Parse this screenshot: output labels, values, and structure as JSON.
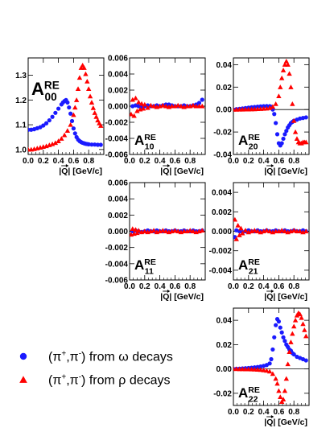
{
  "chart_data": {
    "type": "scatter",
    "colors": {
      "omega": "#1a1aff",
      "rho": "#ff0000"
    },
    "x_range": [
      0,
      1.0
    ],
    "x_ticks": [
      0.0,
      0.2,
      0.4,
      0.6,
      0.8
    ],
    "x_tick_labels": [
      "0.0",
      "0.2",
      "0.4",
      "0.6",
      "0.8"
    ],
    "xlabel_vec": "Q",
    "xlabel_unit": " [GeV/c]",
    "xlabel_bar": "|",
    "legend": [
      {
        "series": "omega",
        "marker": "circle",
        "label_main": "(π",
        "sup1": "+",
        "mid": ",π",
        "sup2": "-",
        "tail": ") from ω decays"
      },
      {
        "series": "rho",
        "marker": "triangle",
        "label_main": "(π",
        "sup1": "+",
        "mid": ",π",
        "sup2": "-",
        "tail": ") from ρ decays"
      }
    ],
    "panels": [
      {
        "id": "A00",
        "label_main": "A",
        "label_sup": "RE",
        "label_sub": "00",
        "ylim": [
          0.98,
          1.37
        ],
        "y_ticks": [
          1.0,
          1.1,
          1.2,
          1.3
        ],
        "y_tick_labels": [
          "1.0",
          "1.1",
          "1.2",
          "1.3"
        ],
        "zero_line": false,
        "series": [
          {
            "name": "omega",
            "x": [
              0.0,
              0.04,
              0.08,
              0.12,
              0.16,
              0.2,
              0.24,
              0.28,
              0.32,
              0.36,
              0.4,
              0.44,
              0.46,
              0.48,
              0.5,
              0.52,
              0.54,
              0.56,
              0.58,
              0.6,
              0.62,
              0.64,
              0.66,
              0.68,
              0.7,
              0.72,
              0.74,
              0.76,
              0.78,
              0.8,
              0.84,
              0.88,
              0.92,
              0.96
            ],
            "y": [
              1.08,
              1.08,
              1.082,
              1.086,
              1.09,
              1.097,
              1.106,
              1.118,
              1.132,
              1.148,
              1.165,
              1.182,
              1.19,
              1.196,
              1.2,
              1.19,
              1.17,
              1.145,
              1.115,
              1.085,
              1.065,
              1.05,
              1.04,
              1.034,
              1.03,
              1.027,
              1.025,
              1.023,
              1.022,
              1.021,
              1.02,
              1.02,
              1.019,
              1.019
            ]
          },
          {
            "name": "rho",
            "x": [
              0.0,
              0.04,
              0.08,
              0.12,
              0.16,
              0.2,
              0.24,
              0.28,
              0.32,
              0.36,
              0.4,
              0.44,
              0.48,
              0.52,
              0.56,
              0.6,
              0.62,
              0.64,
              0.66,
              0.68,
              0.7,
              0.72,
              0.74,
              0.76,
              0.78,
              0.8,
              0.82,
              0.84,
              0.86,
              0.88,
              0.9,
              0.92,
              0.94,
              0.96
            ],
            "y": [
              1.0,
              1.0,
              1.002,
              1.005,
              1.008,
              1.011,
              1.014,
              1.018,
              1.022,
              1.027,
              1.034,
              1.044,
              1.058,
              1.076,
              1.1,
              1.14,
              1.17,
              1.2,
              1.245,
              1.29,
              1.33,
              1.34,
              1.33,
              1.305,
              1.275,
              1.245,
              1.215,
              1.19,
              1.168,
              1.148,
              1.132,
              1.118,
              1.106,
              1.096
            ]
          }
        ]
      },
      {
        "id": "A10",
        "label_main": "A",
        "label_sup": "RE",
        "label_sub": "10",
        "ylim": [
          -0.006,
          0.006
        ],
        "y_ticks": [
          -0.006,
          -0.004,
          -0.002,
          0.0,
          0.002,
          0.004,
          0.006
        ],
        "y_tick_labels": [
          "-0.006",
          "-0.004",
          "-0.002",
          "0.000",
          "0.002",
          "0.004",
          "0.006"
        ],
        "zero_line": true,
        "series": [
          {
            "name": "omega",
            "x": [
              0.04,
              0.08,
              0.12,
              0.16,
              0.2,
              0.24,
              0.28,
              0.32,
              0.36,
              0.4,
              0.44,
              0.48,
              0.52,
              0.56,
              0.6,
              0.64,
              0.68,
              0.72,
              0.76,
              0.8,
              0.84,
              0.88,
              0.92,
              0.96
            ],
            "y": [
              0.0,
              0.0001,
              0.0,
              -0.0001,
              0.0,
              0.0001,
              0.0,
              0.0,
              0.0001,
              0.0,
              0.0001,
              0.0002,
              0.0002,
              0.0001,
              0.0,
              0.0,
              0.0,
              0.0001,
              0.0,
              0.0,
              0.0001,
              0.0002,
              0.0004,
              0.0008
            ]
          },
          {
            "name": "rho",
            "x": [
              0.02,
              0.04,
              0.06,
              0.08,
              0.1,
              0.12,
              0.14,
              0.16,
              0.18,
              0.2,
              0.24,
              0.28,
              0.32,
              0.36,
              0.4,
              0.44,
              0.48,
              0.52,
              0.56,
              0.6,
              0.64,
              0.68,
              0.72,
              0.76,
              0.8,
              0.84,
              0.88,
              0.92,
              0.96
            ],
            "y": [
              -0.001,
              0.0008,
              -0.0012,
              0.001,
              -0.0006,
              0.0005,
              -0.0004,
              0.0003,
              -0.0003,
              0.0002,
              -0.0002,
              0.0001,
              0.0,
              -0.0001,
              0.0,
              0.0001,
              0.0,
              -0.0001,
              0.0,
              0.0,
              0.0001,
              0.0,
              -0.0001,
              0.0,
              0.0,
              0.0001,
              0.0,
              0.0,
              0.0
            ]
          }
        ]
      },
      {
        "id": "A20",
        "label_main": "A",
        "label_sup": "RE",
        "label_sub": "20",
        "ylim": [
          -0.04,
          0.046
        ],
        "y_ticks": [
          -0.04,
          -0.02,
          0.0,
          0.02,
          0.04
        ],
        "y_tick_labels": [
          "-0.04",
          "-0.02",
          "0.00",
          "0.02",
          "0.04"
        ],
        "zero_line": true,
        "series": [
          {
            "name": "omega",
            "x": [
              0.0,
              0.04,
              0.08,
              0.12,
              0.16,
              0.2,
              0.24,
              0.28,
              0.32,
              0.36,
              0.4,
              0.44,
              0.48,
              0.5,
              0.52,
              0.54,
              0.56,
              0.58,
              0.6,
              0.62,
              0.64,
              0.66,
              0.68,
              0.7,
              0.72,
              0.74,
              0.76,
              0.78,
              0.8,
              0.84,
              0.88,
              0.92,
              0.96
            ],
            "y": [
              0.0,
              0.0003,
              0.0006,
              0.001,
              0.0013,
              0.0017,
              0.002,
              0.0023,
              0.0026,
              0.0028,
              0.003,
              0.0031,
              0.003,
              0.0025,
              0.0,
              -0.004,
              -0.012,
              -0.022,
              -0.03,
              -0.032,
              -0.03,
              -0.026,
              -0.022,
              -0.019,
              -0.016,
              -0.014,
              -0.012,
              -0.011,
              -0.01,
              -0.009,
              -0.008,
              -0.0075,
              -0.007
            ]
          },
          {
            "name": "rho",
            "x": [
              0.0,
              0.04,
              0.08,
              0.12,
              0.16,
              0.2,
              0.24,
              0.28,
              0.32,
              0.36,
              0.4,
              0.44,
              0.48,
              0.52,
              0.56,
              0.6,
              0.62,
              0.64,
              0.66,
              0.68,
              0.7,
              0.72,
              0.74,
              0.76,
              0.78,
              0.8,
              0.82,
              0.84,
              0.86,
              0.88,
              0.9,
              0.92,
              0.94,
              0.96
            ],
            "y": [
              0.0,
              0.0,
              0.0001,
              0.0001,
              0.0002,
              0.0002,
              0.0003,
              0.0004,
              0.0005,
              0.0006,
              0.0008,
              0.001,
              0.0015,
              0.0025,
              0.005,
              0.012,
              0.02,
              0.028,
              0.035,
              0.04,
              0.043,
              0.04,
              0.032,
              0.02,
              0.005,
              -0.01,
              -0.02,
              -0.026,
              -0.029,
              -0.03,
              -0.03,
              -0.029,
              -0.029,
              -0.029
            ]
          }
        ]
      },
      {
        "id": "A11",
        "label_main": "A",
        "label_sup": "RE",
        "label_sub": "11",
        "ylim": [
          -0.006,
          0.006
        ],
        "y_ticks": [
          -0.006,
          -0.004,
          -0.002,
          0.0,
          0.002,
          0.004,
          0.006
        ],
        "y_tick_labels": [
          "-0.006",
          "-0.004",
          "-0.002",
          "0.000",
          "0.002",
          "0.004",
          "0.006"
        ],
        "zero_line": true,
        "series": [
          {
            "name": "omega",
            "x": [
              0.04,
              0.08,
              0.12,
              0.16,
              0.2,
              0.24,
              0.28,
              0.32,
              0.36,
              0.4,
              0.44,
              0.48,
              0.52,
              0.56,
              0.6,
              0.64,
              0.68,
              0.72,
              0.76,
              0.8,
              0.84,
              0.88,
              0.92,
              0.96
            ],
            "y": [
              0.0,
              0.0001,
              0.0,
              -0.0001,
              0.0,
              0.0001,
              0.0,
              0.0,
              0.0001,
              0.0,
              0.0,
              0.0001,
              0.0,
              0.0,
              0.0001,
              0.0,
              0.0,
              0.0001,
              0.0,
              0.0,
              0.0001,
              0.0,
              0.0,
              0.0001
            ]
          },
          {
            "name": "rho",
            "x": [
              0.02,
              0.04,
              0.06,
              0.08,
              0.1,
              0.12,
              0.16,
              0.2,
              0.24,
              0.28,
              0.32,
              0.36,
              0.4,
              0.44,
              0.48,
              0.52,
              0.56,
              0.6,
              0.64,
              0.68,
              0.72,
              0.76,
              0.8,
              0.84,
              0.88,
              0.92,
              0.96
            ],
            "y": [
              -0.0004,
              0.0003,
              -0.0003,
              0.0002,
              -0.0002,
              0.0001,
              -0.0001,
              0.0,
              -0.0001,
              0.0,
              0.0001,
              -0.0001,
              0.0,
              0.0001,
              0.0,
              -0.0001,
              0.0,
              0.0001,
              0.0,
              -0.0001,
              0.0,
              0.0,
              0.0001,
              0.0,
              -0.0001,
              0.0,
              0.0001
            ]
          }
        ]
      },
      {
        "id": "A21",
        "label_main": "A",
        "label_sup": "RE",
        "label_sub": "21",
        "ylim": [
          -0.005,
          0.005
        ],
        "y_ticks": [
          -0.004,
          -0.002,
          0.0,
          0.002,
          0.004
        ],
        "y_tick_labels": [
          "-0.004",
          "-0.002",
          "0.000",
          "0.002",
          "0.004"
        ],
        "zero_line": true,
        "series": [
          {
            "name": "omega",
            "x": [
              0.02,
              0.04,
              0.08,
              0.12,
              0.16,
              0.2,
              0.24,
              0.28,
              0.32,
              0.36,
              0.4,
              0.44,
              0.48,
              0.52,
              0.56,
              0.6,
              0.64,
              0.68,
              0.72,
              0.76,
              0.8,
              0.84,
              0.88,
              0.92,
              0.96
            ],
            "y": [
              -0.0006,
              0.0001,
              0.0,
              -0.0001,
              0.0,
              0.0001,
              0.0,
              0.0,
              0.0001,
              0.0,
              0.0,
              0.0001,
              0.0,
              0.0,
              0.0001,
              0.0,
              0.0,
              0.0001,
              0.0,
              0.0,
              0.0001,
              0.0,
              0.0,
              0.0001,
              0.0
            ]
          },
          {
            "name": "rho",
            "x": [
              0.02,
              0.04,
              0.06,
              0.08,
              0.1,
              0.12,
              0.16,
              0.2,
              0.24,
              0.28,
              0.32,
              0.36,
              0.4,
              0.44,
              0.48,
              0.52,
              0.56,
              0.6,
              0.64,
              0.68,
              0.72,
              0.76,
              0.8,
              0.84,
              0.88,
              0.92,
              0.96
            ],
            "y": [
              0.0012,
              -0.0008,
              0.0006,
              -0.0004,
              0.0003,
              -0.0002,
              0.0001,
              -0.0001,
              0.0,
              0.0001,
              0.0,
              -0.0001,
              0.0,
              0.0001,
              0.0,
              -0.0001,
              0.0,
              0.0,
              0.0001,
              0.0,
              -0.0001,
              0.0,
              0.0001,
              0.0,
              0.0,
              -0.0001,
              0.0
            ]
          }
        ]
      },
      {
        "id": "A22",
        "label_main": "A",
        "label_sup": "RE",
        "label_sub": "22",
        "ylim": [
          -0.03,
          0.05
        ],
        "y_ticks": [
          -0.02,
          0.0,
          0.02,
          0.04
        ],
        "y_tick_labels": [
          "-0.02",
          "0.00",
          "0.02",
          "0.04"
        ],
        "zero_line": true,
        "series": [
          {
            "name": "omega",
            "x": [
              0.0,
              0.04,
              0.08,
              0.12,
              0.16,
              0.2,
              0.24,
              0.28,
              0.32,
              0.36,
              0.4,
              0.44,
              0.48,
              0.5,
              0.52,
              0.54,
              0.56,
              0.58,
              0.6,
              0.62,
              0.64,
              0.66,
              0.68,
              0.7,
              0.72,
              0.74,
              0.76,
              0.78,
              0.8,
              0.84,
              0.88,
              0.92,
              0.96
            ],
            "y": [
              0.0,
              0.0001,
              0.0002,
              0.0004,
              0.0006,
              0.0008,
              0.001,
              0.0013,
              0.0016,
              0.002,
              0.0025,
              0.0032,
              0.0045,
              0.008,
              0.016,
              0.026,
              0.036,
              0.041,
              0.039,
              0.034,
              0.03,
              0.026,
              0.023,
              0.02,
              0.018,
              0.016,
              0.015,
              0.013,
              0.012,
              0.01,
              0.009,
              0.008,
              0.007
            ]
          },
          {
            "name": "rho",
            "x": [
              0.0,
              0.04,
              0.08,
              0.12,
              0.16,
              0.2,
              0.24,
              0.28,
              0.32,
              0.36,
              0.4,
              0.44,
              0.48,
              0.52,
              0.56,
              0.58,
              0.6,
              0.62,
              0.64,
              0.66,
              0.68,
              0.7,
              0.72,
              0.74,
              0.76,
              0.78,
              0.8,
              0.82,
              0.84,
              0.86,
              0.88,
              0.9,
              0.92,
              0.94,
              0.96
            ],
            "y": [
              0.0,
              0.0,
              -0.0001,
              -0.0001,
              -0.0002,
              -0.0002,
              -0.0003,
              -0.0004,
              -0.0005,
              -0.0007,
              -0.001,
              -0.0014,
              -0.002,
              -0.004,
              -0.008,
              -0.012,
              -0.018,
              -0.023,
              -0.027,
              -0.025,
              -0.018,
              -0.008,
              0.004,
              0.014,
              0.022,
              0.029,
              0.035,
              0.04,
              0.044,
              0.046,
              0.045,
              0.042,
              0.037,
              0.032,
              0.027
            ]
          }
        ]
      }
    ]
  }
}
